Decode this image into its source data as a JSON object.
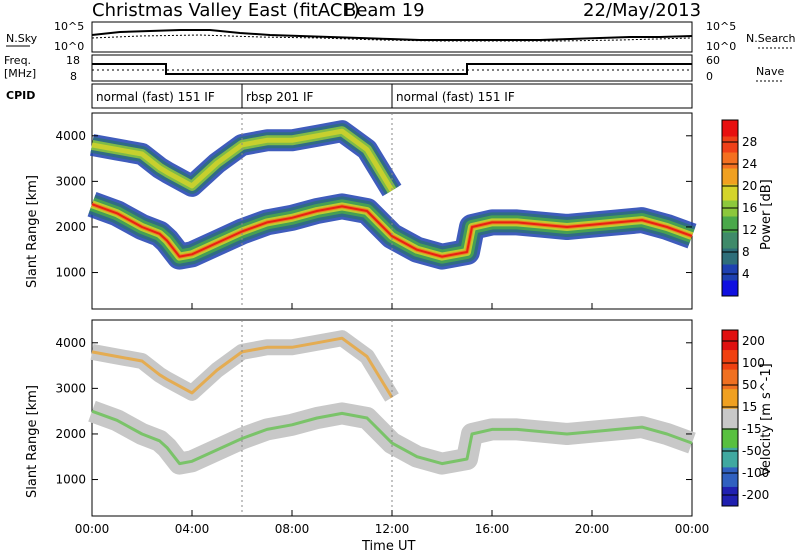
{
  "header": {
    "title": "Christmas Valley East (fitACF)",
    "beam": "Beam 19",
    "date": "22/May/2013"
  },
  "left_labels": {
    "nsky": "N.Sky",
    "freq_top": "Freq.",
    "freq_unit": "[MHz]",
    "cpid": "CPID"
  },
  "right_labels": {
    "nsearch": "N.Search",
    "nave": "Nave"
  },
  "axis_ticks": {
    "nsky_left": [
      "10^5",
      "10^0"
    ],
    "nsearch_right": [
      "10^5",
      "10^0"
    ],
    "freq_left": [
      "18",
      "8"
    ],
    "nave_right": [
      "60",
      "0"
    ]
  },
  "cpid_segments": [
    {
      "label": "normal (fast) 151 IF",
      "start": 0,
      "end": 6
    },
    {
      "label": "rbsp 201 IF",
      "start": 6,
      "end": 12
    },
    {
      "label": "normal (fast) 151 IF",
      "start": 12,
      "end": 24
    }
  ],
  "chart_data": [
    {
      "type": "heatmap",
      "title": "Power",
      "xlabel": "Time UT",
      "ylabel": "Slant Range [km]",
      "x_ticks": [
        "00:00",
        "04:00",
        "08:00",
        "12:00",
        "16:00",
        "20:00",
        "00:00"
      ],
      "y_ticks": [
        1000,
        2000,
        3000,
        4000
      ],
      "ylim": [
        200,
        4500
      ],
      "colorbar": {
        "label": "Power [dB]",
        "ticks": [
          4,
          8,
          12,
          16,
          20,
          24,
          28
        ],
        "colors": [
          "#1010e0",
          "#1d40b0",
          "#2e6e7a",
          "#3f8a6a",
          "#4aa84a",
          "#8cc83c",
          "#d4d42a",
          "#f0a020",
          "#f47020",
          "#f04018",
          "#e81010"
        ]
      },
      "bands": [
        {
          "name": "ionospheric-lower",
          "x": [
            0,
            1,
            2,
            2.7,
            3,
            3.5,
            4,
            5,
            6,
            7,
            8,
            9,
            10,
            11,
            12,
            13,
            14,
            15,
            15.2,
            16,
            17,
            18,
            19,
            20,
            21,
            22,
            23,
            24
          ],
          "y": [
            2500,
            2300,
            2000,
            1850,
            1700,
            1350,
            1400,
            1650,
            1900,
            2100,
            2200,
            2350,
            2450,
            2350,
            1800,
            1500,
            1350,
            1450,
            2000,
            2100,
            2100,
            2050,
            2000,
            2050,
            2100,
            2150,
            2000,
            1800
          ]
        },
        {
          "name": "ionospheric-upper",
          "x": [
            0,
            1,
            2,
            2.7,
            3,
            4,
            5,
            6,
            7,
            8,
            9,
            10,
            11,
            12
          ],
          "y": [
            3800,
            3700,
            3600,
            3300,
            3200,
            2900,
            3400,
            3800,
            3900,
            3900,
            4000,
            4100,
            3700,
            2800
          ]
        }
      ]
    },
    {
      "type": "heatmap",
      "title": "Velocity",
      "xlabel": "Time UT",
      "ylabel": "Slant Range [km]",
      "x_ticks": [
        "00:00",
        "04:00",
        "08:00",
        "12:00",
        "16:00",
        "20:00",
        "00:00"
      ],
      "y_ticks": [
        1000,
        2000,
        3000,
        4000
      ],
      "ylim": [
        200,
        4500
      ],
      "colorbar": {
        "label": "Velocity [m s^-1]",
        "ticks": [
          200,
          100,
          50,
          15,
          -15,
          -50,
          -100,
          -200
        ],
        "colors": [
          "#2020b0",
          "#3060c0",
          "#40a8a0",
          "#58c040",
          "#c8c8c8",
          "#f0a020",
          "#f07020",
          "#f04010",
          "#e01010"
        ]
      }
    }
  ]
}
